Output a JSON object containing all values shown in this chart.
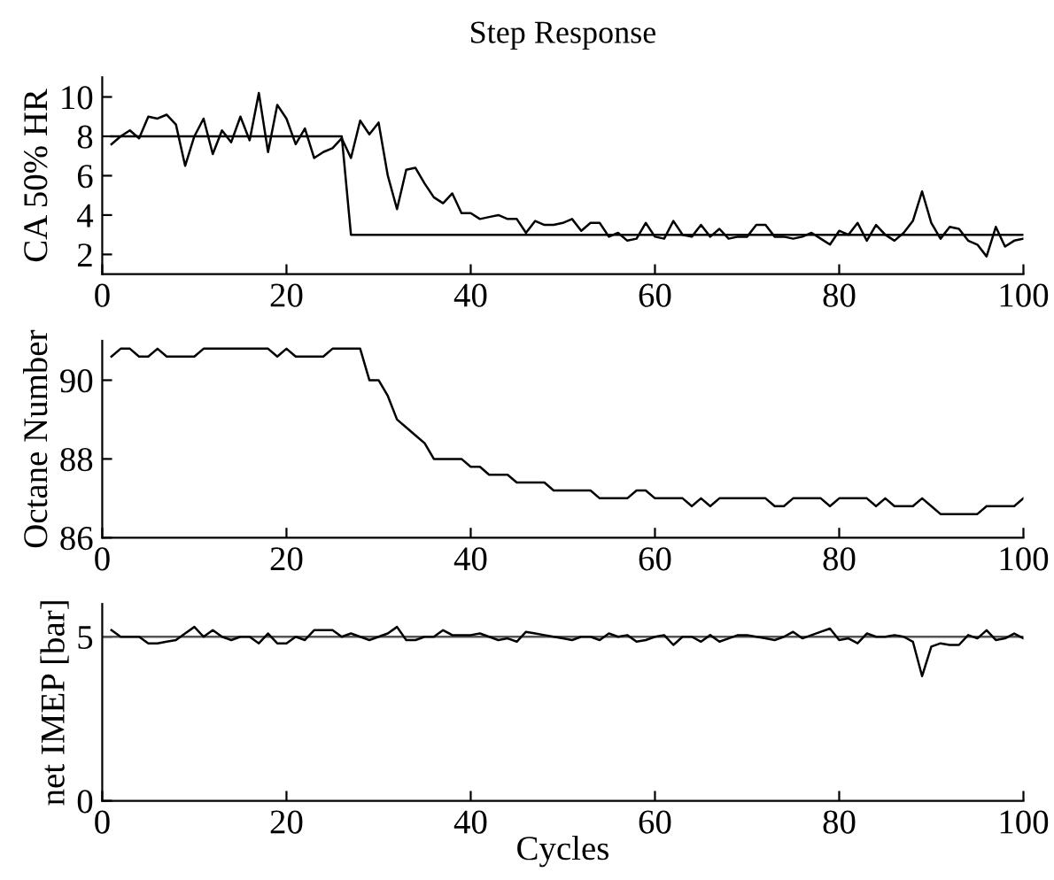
{
  "chart_data": [
    {
      "type": "line",
      "title": "Step Response",
      "ylabel": "CA 50% HR",
      "xlim": [
        0,
        100
      ],
      "ylim": [
        1,
        11
      ],
      "xticks": [
        0,
        20,
        40,
        60,
        80,
        100
      ],
      "yticks": [
        2,
        4,
        6,
        8,
        10
      ],
      "series": [
        {
          "color": "#000000",
          "x": [
            1,
            2,
            3,
            4,
            5,
            6,
            7,
            8,
            9,
            10,
            11,
            12,
            13,
            14,
            15,
            16,
            17,
            18,
            19,
            20,
            21,
            22,
            23,
            24,
            25,
            26,
            27,
            28,
            29,
            30,
            31,
            32,
            33,
            34,
            35,
            36,
            37,
            38,
            39,
            40,
            41,
            42,
            43,
            44,
            45,
            46,
            47,
            48,
            49,
            50,
            51,
            52,
            53,
            54,
            55,
            56,
            57,
            58,
            59,
            60,
            61,
            62,
            63,
            64,
            65,
            66,
            67,
            68,
            69,
            70,
            71,
            72,
            73,
            74,
            75,
            76,
            77,
            78,
            79,
            80,
            81,
            82,
            83,
            84,
            85,
            86,
            87,
            88,
            89,
            90,
            91,
            92,
            93,
            94,
            95,
            96,
            97,
            98,
            99,
            100
          ],
          "values": [
            7.6,
            8.0,
            8.3,
            7.9,
            9.0,
            8.9,
            9.1,
            8.6,
            6.5,
            8.0,
            8.9,
            7.1,
            8.3,
            7.7,
            9.0,
            7.8,
            10.2,
            7.2,
            9.6,
            8.9,
            7.6,
            8.4,
            6.9,
            7.2,
            7.4,
            7.9,
            6.9,
            8.8,
            8.1,
            8.7,
            6.0,
            4.3,
            6.3,
            6.4,
            5.6,
            4.9,
            4.6,
            5.1,
            4.1,
            4.1,
            3.8,
            3.9,
            4.0,
            3.8,
            3.8,
            3.1,
            3.7,
            3.5,
            3.5,
            3.6,
            3.8,
            3.2,
            3.6,
            3.6,
            2.9,
            3.1,
            2.7,
            2.8,
            3.6,
            2.9,
            2.8,
            3.7,
            3.0,
            2.9,
            3.5,
            2.9,
            3.3,
            2.8,
            2.9,
            2.9,
            3.5,
            3.5,
            2.9,
            2.9,
            2.8,
            2.9,
            3.1,
            2.8,
            2.5,
            3.2,
            3.0,
            3.6,
            2.7,
            3.5,
            3.0,
            2.7,
            3.1,
            3.7,
            5.2,
            3.6,
            2.8,
            3.4,
            3.3,
            2.7,
            2.5,
            1.9,
            3.4,
            2.4,
            2.7,
            2.8
          ]
        },
        {
          "color": "#000000",
          "x": [
            1,
            26,
            27,
            100
          ],
          "values": [
            8,
            8,
            3,
            3
          ]
        }
      ]
    },
    {
      "type": "line",
      "ylabel": "Octane Number",
      "xlim": [
        0,
        100
      ],
      "ylim": [
        86,
        91
      ],
      "xticks": [
        0,
        20,
        40,
        60,
        80,
        100
      ],
      "yticks": [
        86,
        88,
        90
      ],
      "series": [
        {
          "color": "#000000",
          "x": [
            1,
            2,
            3,
            4,
            5,
            6,
            7,
            8,
            9,
            10,
            11,
            12,
            13,
            14,
            15,
            16,
            17,
            18,
            19,
            20,
            21,
            22,
            23,
            24,
            25,
            26,
            27,
            28,
            29,
            30,
            31,
            32,
            33,
            34,
            35,
            36,
            37,
            38,
            39,
            40,
            41,
            42,
            43,
            44,
            45,
            46,
            47,
            48,
            49,
            50,
            51,
            52,
            53,
            54,
            55,
            56,
            57,
            58,
            59,
            60,
            61,
            62,
            63,
            64,
            65,
            66,
            67,
            68,
            69,
            70,
            71,
            72,
            73,
            74,
            75,
            76,
            77,
            78,
            79,
            80,
            81,
            82,
            83,
            84,
            85,
            86,
            87,
            88,
            89,
            90,
            91,
            92,
            93,
            94,
            95,
            96,
            97,
            98,
            99,
            100
          ],
          "values": [
            90.6,
            90.8,
            90.8,
            90.6,
            90.6,
            90.8,
            90.6,
            90.6,
            90.6,
            90.6,
            90.8,
            90.8,
            90.8,
            90.8,
            90.8,
            90.8,
            90.8,
            90.8,
            90.6,
            90.8,
            90.6,
            90.6,
            90.6,
            90.6,
            90.8,
            90.8,
            90.8,
            90.8,
            90.0,
            90.0,
            89.6,
            89.0,
            88.8,
            88.6,
            88.4,
            88.0,
            88.0,
            88.0,
            88.0,
            87.8,
            87.8,
            87.6,
            87.6,
            87.6,
            87.4,
            87.4,
            87.4,
            87.4,
            87.2,
            87.2,
            87.2,
            87.2,
            87.2,
            87.0,
            87.0,
            87.0,
            87.0,
            87.2,
            87.2,
            87.0,
            87.0,
            87.0,
            87.0,
            86.8,
            87.0,
            86.8,
            87.0,
            87.0,
            87.0,
            87.0,
            87.0,
            87.0,
            86.8,
            86.8,
            87.0,
            87.0,
            87.0,
            87.0,
            86.8,
            87.0,
            87.0,
            87.0,
            87.0,
            86.8,
            87.0,
            86.8,
            86.8,
            86.8,
            87.0,
            86.8,
            86.6,
            86.6,
            86.6,
            86.6,
            86.6,
            86.8,
            86.8,
            86.8,
            86.8,
            87.0
          ]
        }
      ]
    },
    {
      "type": "line",
      "ylabel": "net IMEP [bar]",
      "xlabel": "Cycles",
      "xlim": [
        0,
        100
      ],
      "ylim": [
        0,
        6
      ],
      "xticks": [
        0,
        20,
        40,
        60,
        80,
        100
      ],
      "yticks": [
        0,
        5
      ],
      "ref_lines": [
        {
          "axis": "y",
          "value": 5,
          "color": "#555555"
        }
      ],
      "series": [
        {
          "color": "#000000",
          "x": [
            1,
            2,
            3,
            4,
            5,
            6,
            7,
            8,
            9,
            10,
            11,
            12,
            13,
            14,
            15,
            16,
            17,
            18,
            19,
            20,
            21,
            22,
            23,
            24,
            25,
            26,
            27,
            28,
            29,
            30,
            31,
            32,
            33,
            34,
            35,
            36,
            37,
            38,
            39,
            40,
            41,
            42,
            43,
            44,
            45,
            46,
            47,
            48,
            49,
            50,
            51,
            52,
            53,
            54,
            55,
            56,
            57,
            58,
            59,
            60,
            61,
            62,
            63,
            64,
            65,
            66,
            67,
            68,
            69,
            70,
            71,
            72,
            73,
            74,
            75,
            76,
            77,
            78,
            79,
            80,
            81,
            82,
            83,
            84,
            85,
            86,
            87,
            88,
            89,
            90,
            91,
            92,
            93,
            94,
            95,
            96,
            97,
            98,
            99,
            100
          ],
          "values": [
            5.2,
            5.0,
            5.0,
            5.0,
            4.8,
            4.8,
            4.85,
            4.9,
            5.1,
            5.3,
            5.0,
            5.2,
            5.0,
            4.9,
            5.0,
            5.0,
            4.8,
            5.1,
            4.8,
            4.8,
            5.0,
            4.9,
            5.2,
            5.2,
            5.2,
            5.0,
            5.1,
            5.0,
            4.9,
            5.0,
            5.1,
            5.3,
            4.9,
            4.9,
            5.0,
            5.0,
            5.2,
            5.05,
            5.05,
            5.05,
            5.1,
            5.0,
            4.9,
            4.95,
            4.85,
            5.15,
            5.1,
            5.05,
            5.0,
            4.95,
            4.9,
            5.0,
            5.0,
            4.9,
            5.1,
            5.0,
            5.05,
            4.85,
            4.9,
            5.0,
            5.05,
            4.75,
            5.0,
            5.0,
            4.85,
            5.05,
            4.85,
            4.95,
            5.05,
            5.05,
            5.0,
            4.95,
            4.9,
            5.0,
            5.15,
            4.95,
            5.05,
            5.15,
            5.25,
            4.9,
            4.95,
            4.8,
            5.1,
            5.0,
            5.0,
            5.05,
            5.0,
            4.85,
            3.8,
            4.7,
            4.8,
            4.75,
            4.75,
            5.05,
            4.95,
            5.2,
            4.9,
            4.95,
            5.1,
            4.95
          ]
        }
      ]
    }
  ]
}
